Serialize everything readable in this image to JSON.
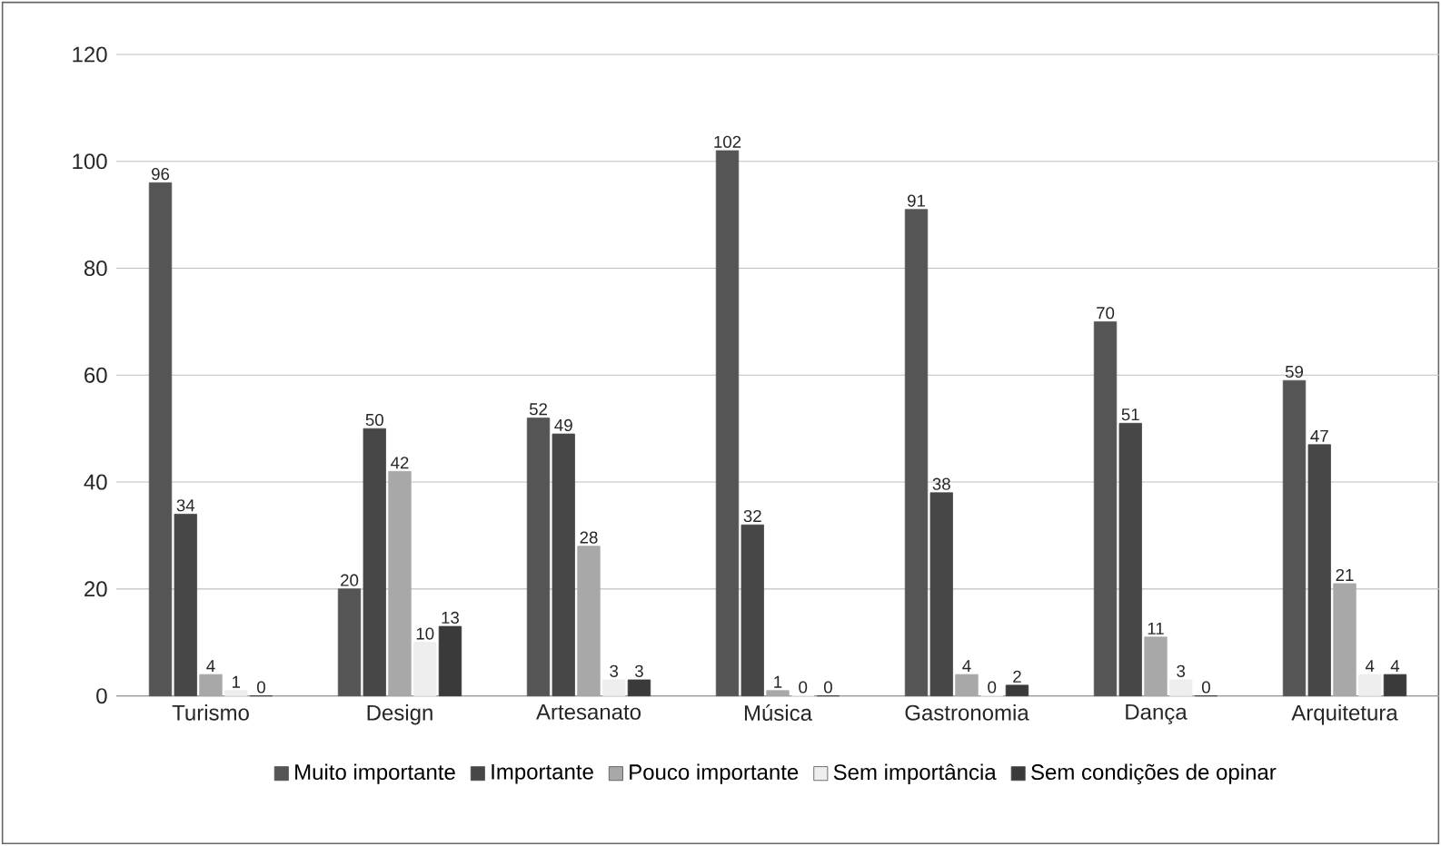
{
  "chart_data": {
    "type": "bar",
    "categories": [
      "Turismo",
      "Design",
      "Artesanato",
      "Música",
      "Gastronomia",
      "Dança",
      "Arquitetura"
    ],
    "series": [
      {
        "name": "Muito importante",
        "color": "#555555",
        "values": [
          96,
          20,
          52,
          102,
          91,
          70,
          59
        ]
      },
      {
        "name": "Importante",
        "color": "#474747",
        "values": [
          34,
          50,
          49,
          32,
          38,
          51,
          47
        ]
      },
      {
        "name": "Pouco importante",
        "color": "#a8a8a8",
        "values": [
          4,
          42,
          28,
          1,
          4,
          11,
          21
        ]
      },
      {
        "name": "Sem importância",
        "color": "#eeeeee",
        "values": [
          1,
          10,
          3,
          0,
          0,
          3,
          4
        ]
      },
      {
        "name": "Sem condições de opinar",
        "color": "#3a3a3a",
        "values": [
          0,
          13,
          3,
          0,
          2,
          0,
          4
        ]
      }
    ],
    "ylim": [
      0,
      120
    ],
    "yticks": [
      0,
      20,
      40,
      60,
      80,
      100,
      120
    ],
    "grid": "y",
    "legend": "bottom",
    "data_labels": true
  }
}
